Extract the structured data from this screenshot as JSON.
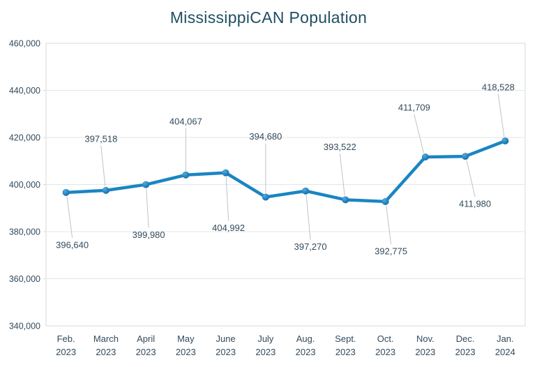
{
  "header": {
    "title": "MississippiCAN Population"
  },
  "chart_data": {
    "type": "line",
    "title": "MississippiCAN Population",
    "legend": "none",
    "grid": true,
    "categories": [
      {
        "month": "Feb.",
        "year": "2023"
      },
      {
        "month": "March",
        "year": "2023"
      },
      {
        "month": "April",
        "year": "2023"
      },
      {
        "month": "May",
        "year": "2023"
      },
      {
        "month": "June",
        "year": "2023"
      },
      {
        "month": "July",
        "year": "2023"
      },
      {
        "month": "Aug.",
        "year": "2023"
      },
      {
        "month": "Sept.",
        "year": "2023"
      },
      {
        "month": "Oct.",
        "year": "2023"
      },
      {
        "month": "Nov.",
        "year": "2023"
      },
      {
        "month": "Dec.",
        "year": "2023"
      },
      {
        "month": "Jan.",
        "year": "2024"
      }
    ],
    "series": [
      {
        "name": "MississippiCAN Population",
        "values": [
          396640,
          397518,
          399980,
          404067,
          404992,
          394680,
          397270,
          393522,
          392775,
          411709,
          411980,
          418528
        ]
      }
    ],
    "data_labels": [
      "396,640",
      "397,518",
      "399,980",
      "404,067",
      "404,992",
      "394,680",
      "397,270",
      "393,522",
      "392,775",
      "411,709",
      "411,980",
      "418,528"
    ],
    "label_layout": {
      "sides": [
        "below",
        "above",
        "below",
        "above",
        "below",
        "above",
        "below",
        "above",
        "below",
        "above",
        "below",
        "above"
      ],
      "dx": [
        9,
        -7,
        4,
        0,
        4,
        0,
        7,
        -8,
        8,
        -16,
        14,
        -10
      ],
      "dy": [
        75,
        -74,
        72,
        -77,
        79,
        -87,
        80,
        -76,
        71,
        -71,
        68,
        -77
      ]
    },
    "y_axis": {
      "min": 340000,
      "max": 460000,
      "step": 20000,
      "tick_labels": [
        "340,000",
        "360,000",
        "380,000",
        "400,000",
        "420,000",
        "440,000",
        "460,000"
      ]
    },
    "colors": {
      "line": "#1a85c3",
      "marker_light": "#55aadf",
      "marker_dark": "#0d6da8",
      "grid": "#e3e7e6",
      "frame": "#d5dbda",
      "leader": "#bcc3c8",
      "text": "#334a5c",
      "title": "#1f4e63"
    }
  }
}
